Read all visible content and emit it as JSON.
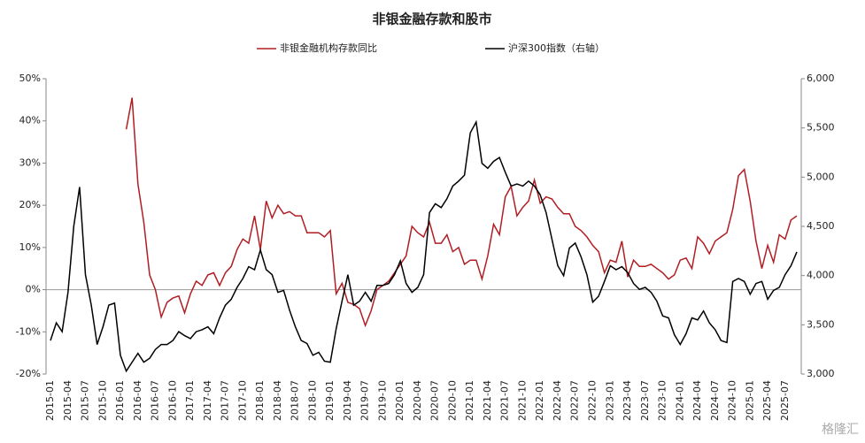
{
  "chart_data": {
    "type": "line",
    "title": "非银金融存款和股市",
    "categories": [
      "2015-01",
      null,
      null,
      "2015-04",
      null,
      null,
      "2015-07",
      null,
      null,
      "2015-10",
      null,
      null,
      "2016-01",
      null,
      null,
      "2016-04",
      null,
      null,
      "2016-07",
      null,
      null,
      "2016-10",
      null,
      null,
      "2017-01",
      null,
      null,
      "2017-04",
      null,
      null,
      "2017-07",
      null,
      null,
      "2017-10",
      null,
      null,
      "2018-01",
      null,
      null,
      "2018-04",
      null,
      null,
      "2018-07",
      null,
      null,
      "2018-10",
      null,
      null,
      "2019-01",
      null,
      null,
      "2019-04",
      null,
      null,
      "2019-07",
      null,
      null,
      "2019-10",
      null,
      null,
      "2020-01",
      null,
      null,
      "2020-04",
      null,
      null,
      "2020-07",
      null,
      null,
      "2020-10",
      null,
      null,
      "2021-01",
      null,
      null,
      "2021-04",
      null,
      null,
      "2021-07",
      null,
      null,
      "2021-10",
      null,
      null,
      "2022-01",
      null,
      null,
      "2022-04",
      null,
      null,
      "2022-07",
      null,
      null,
      "2022-10",
      null,
      null,
      "2023-01",
      null,
      null,
      "2023-04",
      null,
      null,
      "2023-07",
      null,
      null,
      "2023-10",
      null,
      null,
      "2024-01",
      null,
      null,
      "2024-04",
      null,
      null,
      "2024-07",
      null,
      null,
      "2024-10",
      null,
      null,
      "2025-01",
      null,
      null,
      "2025-04",
      null,
      null,
      "2025-07",
      null,
      null
    ],
    "series": [
      {
        "name": "非银金融机构存款同比",
        "color": "#b01e23",
        "axis": "y",
        "values": [
          null,
          null,
          null,
          null,
          null,
          null,
          null,
          null,
          null,
          null,
          null,
          null,
          null,
          38,
          45.5,
          25,
          16,
          3.5,
          0,
          -6.5,
          -3,
          -2,
          -1.5,
          -5.5,
          -1,
          2,
          1,
          3.5,
          4,
          1,
          4,
          5.5,
          9.5,
          12,
          11,
          17.5,
          9.5,
          21,
          17,
          20,
          18,
          18.5,
          17.5,
          17.5,
          13.5,
          13.5,
          13.5,
          12.5,
          14,
          -1,
          1.5,
          -3,
          -3.5,
          -4.5,
          -8.5,
          -5,
          0,
          1,
          2,
          4,
          6,
          8,
          15,
          13.5,
          12.5,
          16,
          11,
          11,
          13,
          9,
          10,
          6,
          7,
          7,
          2.5,
          8,
          15.5,
          13,
          22,
          24.5,
          17.5,
          19.5,
          21,
          26,
          20.5,
          22,
          21.5,
          19.5,
          18,
          18,
          15,
          14,
          12.5,
          10.5,
          9,
          4,
          7,
          6.5,
          11.5,
          3,
          7,
          5.5,
          5.5,
          6,
          5,
          4,
          2.5,
          3.5,
          7,
          7.5,
          5,
          12.5,
          11,
          8.5,
          11.5,
          12.5,
          13.5,
          19,
          27,
          28.5,
          21,
          11.5,
          5,
          10.5,
          6.5,
          13,
          12,
          16.5,
          17.5
        ]
      },
      {
        "name": "沪深300指数（右轴）",
        "color": "#000000",
        "axis": "y2",
        "values": [
          3340,
          3520,
          3430,
          3830,
          4500,
          4900,
          4010,
          3700,
          3300,
          3480,
          3700,
          3720,
          3190,
          3030,
          3120,
          3210,
          3120,
          3160,
          3250,
          3300,
          3300,
          3340,
          3430,
          3390,
          3360,
          3430,
          3450,
          3480,
          3410,
          3570,
          3700,
          3760,
          3880,
          3970,
          4090,
          4060,
          4260,
          4060,
          4010,
          3830,
          3850,
          3650,
          3480,
          3340,
          3310,
          3190,
          3220,
          3130,
          3120,
          3460,
          3740,
          4010,
          3700,
          3740,
          3830,
          3740,
          3900,
          3900,
          3920,
          4010,
          4150,
          3920,
          3830,
          3880,
          4010,
          4640,
          4730,
          4690,
          4780,
          4910,
          4960,
          5020,
          5450,
          5560,
          5140,
          5090,
          5160,
          5200,
          5050,
          4910,
          4930,
          4910,
          4960,
          4910,
          4820,
          4640,
          4370,
          4100,
          4000,
          4280,
          4330,
          4190,
          4010,
          3730,
          3790,
          3940,
          4100,
          4060,
          4090,
          4030,
          3920,
          3860,
          3880,
          3830,
          3740,
          3590,
          3570,
          3400,
          3300,
          3410,
          3570,
          3550,
          3640,
          3520,
          3450,
          3340,
          3320,
          3940,
          3970,
          3940,
          3810,
          3920,
          3940,
          3760,
          3850,
          3880,
          4010,
          4100,
          4240
        ]
      }
    ],
    "ylim": [
      -20,
      50
    ],
    "yticks": [
      {
        "value": -20,
        "label": "-20%"
      },
      {
        "value": -10,
        "label": "-10%"
      },
      {
        "value": 0,
        "label": "0%"
      },
      {
        "value": 10,
        "label": "10%"
      },
      {
        "value": 20,
        "label": "20%"
      },
      {
        "value": 30,
        "label": "30%"
      },
      {
        "value": 40,
        "label": "40%"
      },
      {
        "value": 50,
        "label": "50%"
      }
    ],
    "y2lim": [
      3000,
      6000
    ],
    "y2ticks": [
      {
        "value": 3000,
        "label": "3,000"
      },
      {
        "value": 3500,
        "label": "3,500"
      },
      {
        "value": 4000,
        "label": "4,000"
      },
      {
        "value": 4500,
        "label": "4,500"
      },
      {
        "value": 5000,
        "label": "5,000"
      },
      {
        "value": 5500,
        "label": "5,500"
      },
      {
        "value": 6000,
        "label": "6,000"
      }
    ],
    "legend": "top",
    "watermark": "格隆汇"
  }
}
